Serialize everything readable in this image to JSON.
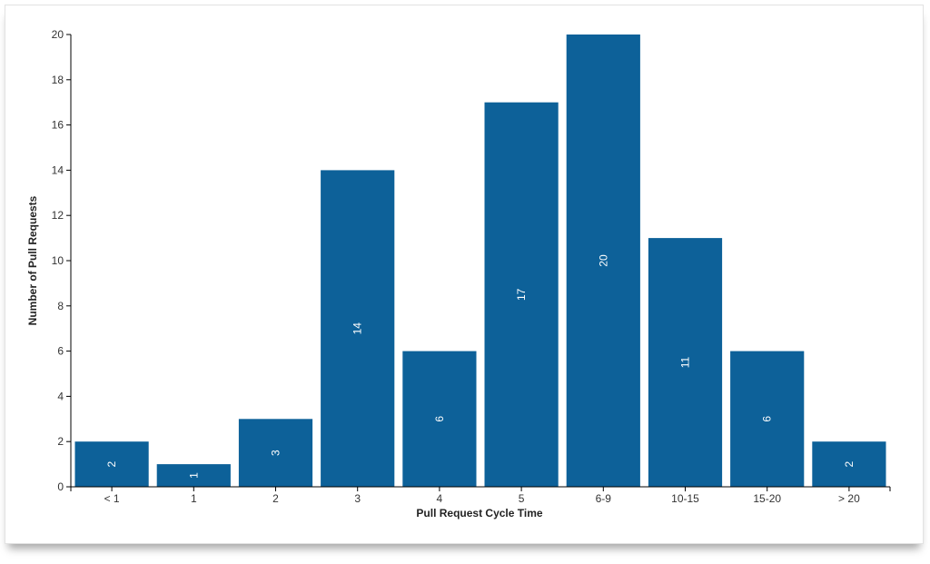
{
  "chart_data": {
    "type": "bar",
    "title": "",
    "xlabel": "Pull Request Cycle Time",
    "ylabel": "Number of Pull Requests",
    "categories": [
      "< 1",
      "1",
      "2",
      "3",
      "4",
      "5",
      "6-9",
      "10-15",
      "15-20",
      "> 20"
    ],
    "values": [
      2,
      1,
      3,
      14,
      6,
      17,
      20,
      11,
      6,
      2
    ],
    "data_labels": [
      "2",
      "1",
      "3",
      "14",
      "6",
      "17",
      "20",
      "11",
      "6",
      "2"
    ],
    "ylim": [
      0,
      20
    ],
    "yticks": [
      0,
      2,
      4,
      6,
      8,
      10,
      12,
      14,
      16,
      18,
      20
    ],
    "ytick_labels": [
      "0",
      "2",
      "4",
      "6",
      "8",
      "10",
      "12",
      "14",
      "16",
      "18",
      "20"
    ],
    "grid": false,
    "legend": "none",
    "bar_color": "#0d6199"
  }
}
